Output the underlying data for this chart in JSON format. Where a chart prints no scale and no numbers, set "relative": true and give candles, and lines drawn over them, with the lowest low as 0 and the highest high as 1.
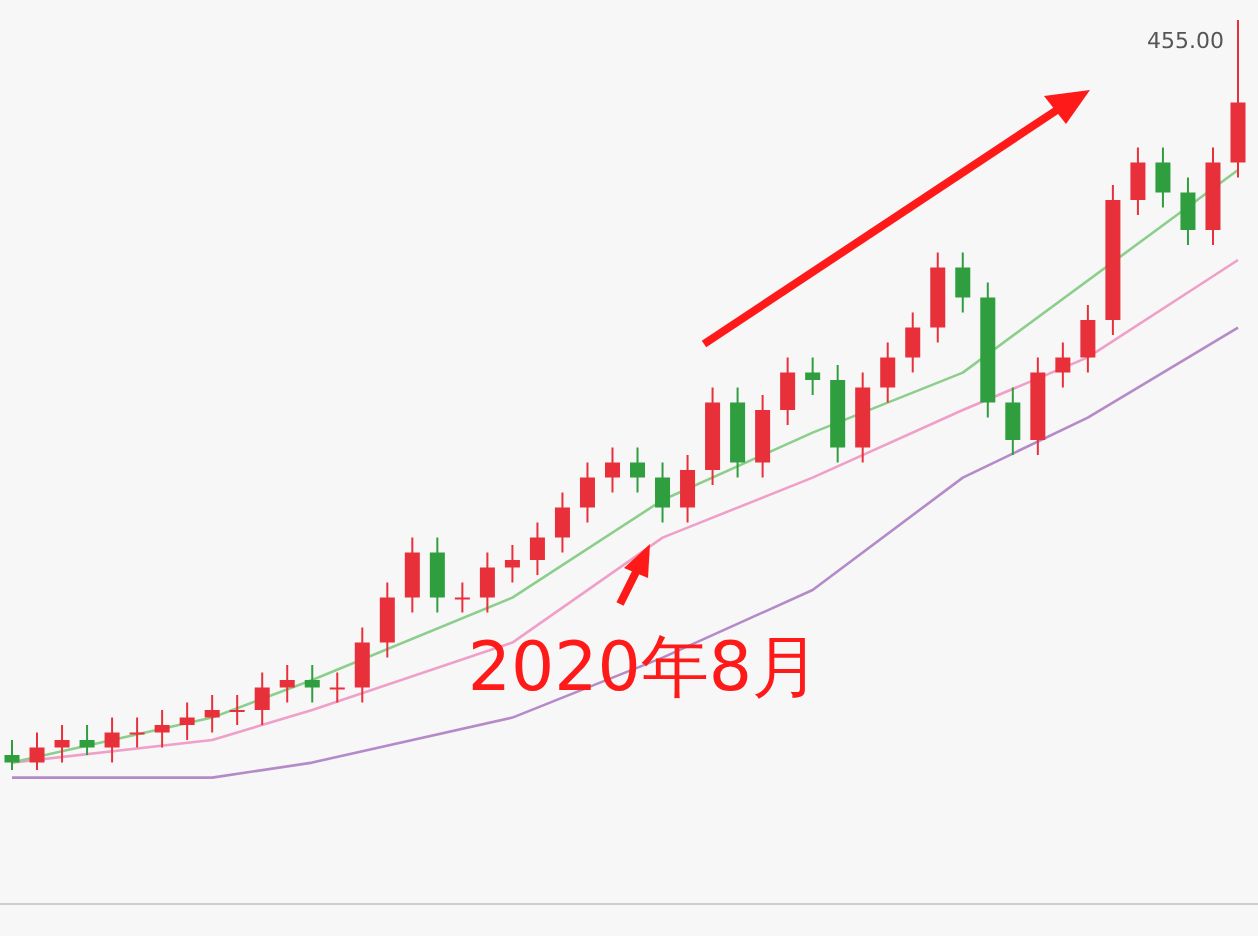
{
  "chart_data": {
    "type": "candlestick",
    "relative": true,
    "annotations": [
      "455.00",
      "2020年8月"
    ],
    "categories": [
      null,
      null,
      null,
      null,
      null,
      null,
      null,
      null,
      null,
      null,
      null,
      null,
      null,
      null,
      null,
      null,
      null,
      null,
      null,
      null,
      null,
      null,
      null,
      null,
      null,
      null,
      null,
      null,
      null,
      null,
      null,
      null,
      null,
      null,
      null,
      null,
      null,
      null,
      null,
      null,
      null,
      null,
      null,
      null,
      null,
      null,
      null,
      null,
      null,
      null
    ],
    "ohlc": [
      [
        0.02,
        0.04,
        0.0,
        0.01
      ],
      [
        0.01,
        0.05,
        0.0,
        0.03
      ],
      [
        0.03,
        0.06,
        0.01,
        0.04
      ],
      [
        0.04,
        0.06,
        0.02,
        0.03
      ],
      [
        0.03,
        0.07,
        0.01,
        0.05
      ],
      [
        0.05,
        0.07,
        0.03,
        0.05
      ],
      [
        0.05,
        0.08,
        0.03,
        0.06
      ],
      [
        0.06,
        0.09,
        0.04,
        0.07
      ],
      [
        0.07,
        0.1,
        0.05,
        0.08
      ],
      [
        0.08,
        0.1,
        0.06,
        0.08
      ],
      [
        0.08,
        0.13,
        0.06,
        0.11
      ],
      [
        0.11,
        0.14,
        0.09,
        0.12
      ],
      [
        0.12,
        0.14,
        0.09,
        0.11
      ],
      [
        0.11,
        0.13,
        0.09,
        0.11
      ],
      [
        0.11,
        0.19,
        0.09,
        0.17
      ],
      [
        0.17,
        0.25,
        0.15,
        0.23
      ],
      [
        0.23,
        0.31,
        0.21,
        0.29
      ],
      [
        0.29,
        0.31,
        0.21,
        0.23
      ],
      [
        0.23,
        0.25,
        0.21,
        0.23
      ],
      [
        0.23,
        0.29,
        0.21,
        0.27
      ],
      [
        0.27,
        0.3,
        0.25,
        0.28
      ],
      [
        0.28,
        0.33,
        0.26,
        0.31
      ],
      [
        0.31,
        0.37,
        0.29,
        0.35
      ],
      [
        0.35,
        0.41,
        0.33,
        0.39
      ],
      [
        0.39,
        0.43,
        0.37,
        0.41
      ],
      [
        0.41,
        0.43,
        0.37,
        0.39
      ],
      [
        0.39,
        0.41,
        0.33,
        0.35
      ],
      [
        0.35,
        0.42,
        0.33,
        0.4
      ],
      [
        0.4,
        0.51,
        0.38,
        0.49
      ],
      [
        0.49,
        0.51,
        0.39,
        0.41
      ],
      [
        0.41,
        0.5,
        0.39,
        0.48
      ],
      [
        0.48,
        0.55,
        0.46,
        0.53
      ],
      [
        0.53,
        0.55,
        0.5,
        0.52
      ],
      [
        0.52,
        0.54,
        0.41,
        0.43
      ],
      [
        0.43,
        0.53,
        0.41,
        0.51
      ],
      [
        0.51,
        0.57,
        0.49,
        0.55
      ],
      [
        0.55,
        0.61,
        0.53,
        0.59
      ],
      [
        0.59,
        0.69,
        0.57,
        0.67
      ],
      [
        0.67,
        0.69,
        0.61,
        0.63
      ],
      [
        0.63,
        0.65,
        0.47,
        0.49
      ],
      [
        0.49,
        0.51,
        0.42,
        0.44
      ],
      [
        0.44,
        0.55,
        0.42,
        0.53
      ],
      [
        0.53,
        0.57,
        0.51,
        0.55
      ],
      [
        0.55,
        0.62,
        0.53,
        0.6
      ],
      [
        0.6,
        0.78,
        0.58,
        0.76
      ],
      [
        0.76,
        0.83,
        0.74,
        0.81
      ],
      [
        0.81,
        0.83,
        0.75,
        0.77
      ],
      [
        0.77,
        0.79,
        0.7,
        0.72
      ],
      [
        0.72,
        0.83,
        0.7,
        0.81
      ],
      [
        0.81,
        1.0,
        0.79,
        0.89
      ]
    ],
    "colors": [
      "#2e9e3e",
      "#e8303a",
      "#e8303a",
      "#2e9e3e",
      "#e8303a",
      "#e8303a",
      "#e8303a",
      "#e8303a",
      "#e8303a",
      "#e8303a",
      "#e8303a",
      "#e8303a",
      "#2e9e3e",
      "#e8303a",
      "#e8303a",
      "#e8303a",
      "#e8303a",
      "#2e9e3e",
      "#e8303a",
      "#e8303a",
      "#e8303a",
      "#e8303a",
      "#e8303a",
      "#e8303a",
      "#e8303a",
      "#2e9e3e",
      "#2e9e3e",
      "#e8303a",
      "#e8303a",
      "#2e9e3e",
      "#e8303a",
      "#e8303a",
      "#2e9e3e",
      "#2e9e3e",
      "#e8303a",
      "#e8303a",
      "#e8303a",
      "#e8303a",
      "#2e9e3e",
      "#2e9e3e",
      "#2e9e3e",
      "#e8303a",
      "#e8303a",
      "#e8303a",
      "#e8303a",
      "#e8303a",
      "#2e9e3e",
      "#2e9e3e",
      "#e8303a",
      "#e8303a"
    ],
    "series": [
      {
        "type": "line",
        "color": "#b48ac8",
        "values": [
          -0.01,
          null,
          null,
          null,
          null,
          null,
          null,
          null,
          -0.01,
          null,
          null,
          null,
          0.01,
          null,
          null,
          null,
          null,
          null,
          null,
          null,
          0.07,
          null,
          null,
          null,
          null,
          null,
          0.15,
          null,
          null,
          null,
          null,
          null,
          0.24,
          null,
          null,
          null,
          null,
          null,
          0.39,
          null,
          null,
          null,
          null,
          0.47,
          null,
          null,
          null,
          null,
          null,
          0.59
        ]
      },
      {
        "type": "line",
        "color": "#f0a0c8",
        "values": [
          0.01,
          null,
          null,
          null,
          null,
          null,
          null,
          null,
          0.04,
          null,
          null,
          null,
          0.08,
          null,
          null,
          null,
          null,
          null,
          null,
          null,
          0.17,
          null,
          null,
          null,
          null,
          null,
          0.31,
          null,
          null,
          null,
          null,
          null,
          0.39,
          null,
          null,
          null,
          null,
          null,
          0.48,
          null,
          null,
          null,
          null,
          0.55,
          null,
          null,
          null,
          null,
          null,
          0.68
        ]
      },
      {
        "type": "line",
        "color": "#8ccf8c",
        "values": [
          0.01,
          null,
          null,
          null,
          null,
          null,
          null,
          null,
          0.07,
          null,
          null,
          null,
          0.12,
          null,
          null,
          null,
          null,
          null,
          null,
          null,
          0.23,
          null,
          null,
          null,
          null,
          null,
          0.36,
          null,
          null,
          null,
          null,
          null,
          0.45,
          null,
          null,
          null,
          null,
          null,
          0.53,
          null,
          null,
          null,
          null,
          null,
          null,
          null,
          null,
          null,
          null,
          0.8
        ]
      }
    ]
  }
}
